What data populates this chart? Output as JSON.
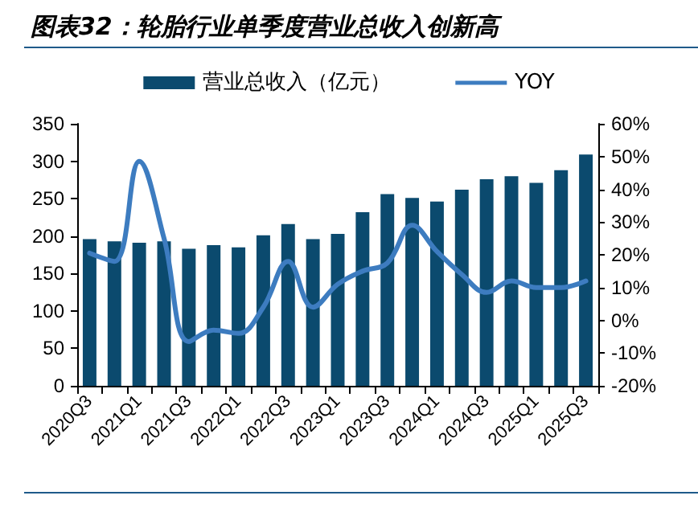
{
  "chart_data": {
    "type": "bar",
    "title": "图表32：轮胎行业单季度营业总收入创新高",
    "categories": [
      "2020Q3",
      null,
      "2021Q1",
      null,
      "2021Q3",
      null,
      "2022Q1",
      null,
      "2022Q3",
      null,
      "2023Q1",
      null,
      "2023Q3",
      null,
      "2024Q1",
      null,
      "2024Q3",
      null,
      "2025Q1",
      null,
      "2025Q3"
    ],
    "series": [
      {
        "name": "营业总收入（亿元）",
        "color": "#0b4a6e",
        "values": [
          196,
          193,
          191,
          193,
          183,
          188,
          185,
          201,
          216,
          196,
          203,
          232,
          256,
          251,
          246,
          262,
          276,
          280,
          271,
          288,
          309
        ]
      },
      {
        "name": "YOY",
        "type": "line",
        "axis": "y2",
        "color": "#3d7cc0",
        "values": [
          20.5,
          18,
          48.5,
          25,
          -6.5,
          -3,
          -4,
          4,
          18,
          4,
          11,
          15,
          17.5,
          29,
          21,
          14,
          8.5,
          12,
          10,
          10,
          12
        ]
      }
    ],
    "ylim": [
      0,
      350
    ],
    "yticks": [
      0,
      50,
      100,
      150,
      200,
      250,
      300,
      350
    ],
    "y2lim": [
      -20,
      60
    ],
    "y2ticks": [
      {
        "value": -20,
        "label": "-20%"
      },
      {
        "value": -10,
        "label": "-10%"
      },
      {
        "value": 0,
        "label": "0%"
      },
      {
        "value": 10,
        "label": "10%"
      },
      {
        "value": 20,
        "label": "20%"
      },
      {
        "value": 30,
        "label": "30%"
      },
      {
        "value": 40,
        "label": "40%"
      },
      {
        "value": 50,
        "label": "50%"
      },
      {
        "value": 60,
        "label": "60%"
      }
    ],
    "grid": false,
    "legend": "top",
    "marker": "none",
    "line_style": "solid"
  }
}
